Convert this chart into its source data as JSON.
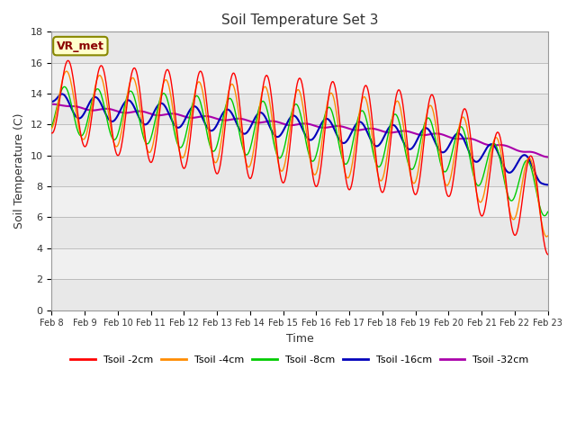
{
  "title": "Soil Temperature Set 3",
  "xlabel": "Time",
  "ylabel": "Soil Temperature (C)",
  "ylim": [
    0,
    18
  ],
  "annotation": "VR_met",
  "background_color": "#ffffff",
  "series": {
    "Tsoil -2cm": {
      "color": "#ff0000",
      "lw": 1.0
    },
    "Tsoil -4cm": {
      "color": "#ff8c00",
      "lw": 1.0
    },
    "Tsoil -8cm": {
      "color": "#00cc00",
      "lw": 1.0
    },
    "Tsoil -16cm": {
      "color": "#0000bb",
      "lw": 1.5
    },
    "Tsoil -32cm": {
      "color": "#aa00aa",
      "lw": 1.5
    }
  },
  "band_colors": [
    "#e8e8e8",
    "#f0f0f0"
  ],
  "yticks": [
    0,
    2,
    4,
    6,
    8,
    10,
    12,
    14,
    16,
    18
  ],
  "n_points": 720,
  "start_day": 0,
  "total_days": 15
}
